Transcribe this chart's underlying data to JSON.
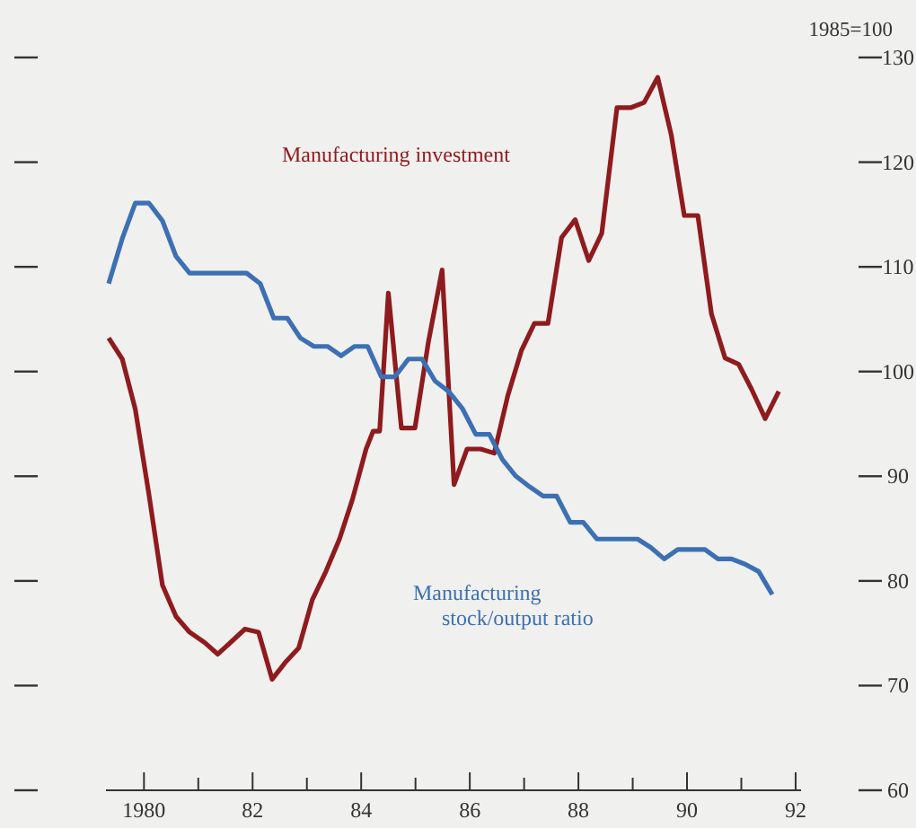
{
  "chart_data": {
    "type": "line",
    "ylabel": "1985=100",
    "xlim": [
      1979.3,
      1992.1
    ],
    "ylim": [
      60,
      130
    ],
    "yticks": [
      60,
      70,
      80,
      90,
      100,
      110,
      120,
      130
    ],
    "xticks": [
      {
        "value": 1980,
        "label": "1980"
      },
      {
        "value": 1981,
        "label": null
      },
      {
        "value": 1982,
        "label": "82"
      },
      {
        "value": 1983,
        "label": null
      },
      {
        "value": 1984,
        "label": "84"
      },
      {
        "value": 1985,
        "label": null
      },
      {
        "value": 1986,
        "label": "86"
      },
      {
        "value": 1987,
        "label": null
      },
      {
        "value": 1988,
        "label": "88"
      },
      {
        "value": 1989,
        "label": null
      },
      {
        "value": 1990,
        "label": "90"
      },
      {
        "value": 1991,
        "label": null
      },
      {
        "value": 1992,
        "label": "92"
      }
    ],
    "grid": false,
    "line_style": "solid",
    "marker": "none",
    "series": [
      {
        "name": "Manufacturing investment",
        "color": "#8e1b1e",
        "x": [
          1979.35,
          1979.6,
          1979.84,
          1980.09,
          1980.34,
          1980.59,
          1980.84,
          1981.12,
          1981.36,
          1981.61,
          1981.86,
          1982.11,
          1982.36,
          1982.6,
          1982.85,
          1983.1,
          1983.35,
          1983.6,
          1983.84,
          1984.09,
          1984.22,
          1984.34,
          1984.5,
          1984.74,
          1984.99,
          1985.24,
          1985.49,
          1985.71,
          1985.95,
          1986.2,
          1986.45,
          1986.7,
          1986.95,
          1987.19,
          1987.44,
          1987.69,
          1987.94,
          1988.19,
          1988.43,
          1988.71,
          1988.96,
          1989.21,
          1989.46,
          1989.71,
          1989.95,
          1990.2,
          1990.45,
          1990.7,
          1990.95,
          1991.19,
          1991.44,
          1991.69
        ],
        "values": [
          103.2,
          101.2,
          96.4,
          88.3,
          79.6,
          76.6,
          75.1,
          74.1,
          73.0,
          74.2,
          75.4,
          75.1,
          70.6,
          72.2,
          73.6,
          78.2,
          80.9,
          84.0,
          87.8,
          92.6,
          94.3,
          94.3,
          107.5,
          94.6,
          94.6,
          102.9,
          109.7,
          89.2,
          92.6,
          92.6,
          92.2,
          97.7,
          102.0,
          104.6,
          104.6,
          112.8,
          114.5,
          110.6,
          113.2,
          125.2,
          125.2,
          125.7,
          128.1,
          122.6,
          114.9,
          114.9,
          105.5,
          101.3,
          100.7,
          98.3,
          95.5,
          98.1
        ]
      },
      {
        "name": "Manufacturing stock/output ratio",
        "color": "#3d70b2",
        "x": [
          1979.35,
          1979.6,
          1979.84,
          1980.09,
          1980.34,
          1980.59,
          1980.84,
          1981.12,
          1981.36,
          1981.61,
          1981.89,
          1982.14,
          1982.39,
          1982.64,
          1982.88,
          1983.13,
          1983.38,
          1983.63,
          1983.88,
          1984.12,
          1984.37,
          1984.62,
          1984.87,
          1985.12,
          1985.36,
          1985.61,
          1985.86,
          1986.11,
          1986.36,
          1986.6,
          1986.85,
          1987.1,
          1987.35,
          1987.6,
          1987.85,
          1988.09,
          1988.34,
          1988.59,
          1988.84,
          1989.09,
          1989.33,
          1989.58,
          1989.83,
          1990.08,
          1990.33,
          1990.57,
          1990.82,
          1991.07,
          1991.32,
          1991.57
        ],
        "values": [
          108.4,
          112.7,
          116.1,
          116.1,
          114.4,
          111.0,
          109.4,
          109.4,
          109.4,
          109.4,
          109.4,
          108.4,
          105.1,
          105.1,
          103.2,
          102.4,
          102.4,
          101.5,
          102.4,
          102.4,
          99.5,
          99.5,
          101.2,
          101.2,
          99.1,
          98.1,
          96.5,
          94.0,
          94.0,
          91.6,
          90.0,
          89.0,
          88.1,
          88.1,
          85.6,
          85.6,
          84.0,
          84.0,
          84.0,
          84.0,
          83.2,
          82.1,
          83.0,
          83.0,
          83.0,
          82.1,
          82.1,
          81.6,
          80.9,
          78.7
        ]
      }
    ]
  }
}
